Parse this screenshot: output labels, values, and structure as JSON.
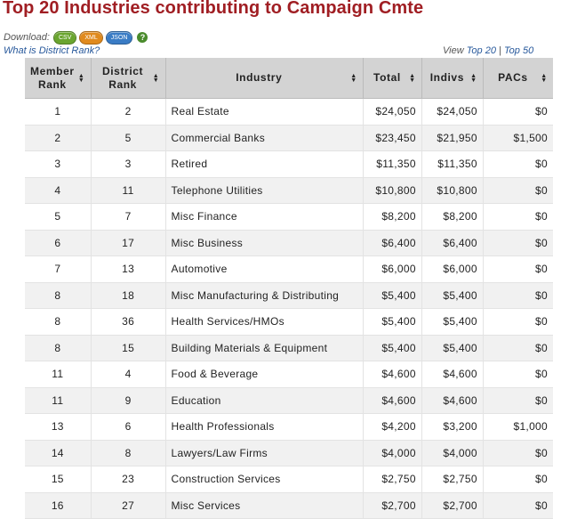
{
  "title": "Top 20 Industries contributing to Campaign Cmte",
  "download": {
    "label": "Download:",
    "buttons": [
      {
        "label": "CSV",
        "color": "#6aa52f"
      },
      {
        "label": "XML",
        "color": "#e08a1e"
      },
      {
        "label": "JSON",
        "color": "#3a7cc5"
      }
    ],
    "help": "?"
  },
  "rank_link": "What is District Rank?",
  "view": {
    "prefix": "View",
    "top20": "Top 20",
    "separator": "|",
    "top50": "Top 50"
  },
  "table": {
    "headers": {
      "member_rank": [
        "Member",
        "Rank"
      ],
      "district_rank": [
        "District",
        "Rank"
      ],
      "industry": "Industry",
      "total": "Total",
      "indivs": "Indivs",
      "pacs": "PACs"
    },
    "rows": [
      {
        "member_rank": "1",
        "district_rank": "2",
        "industry": "Real Estate",
        "total": "$24,050",
        "indivs": "$24,050",
        "pacs": "$0"
      },
      {
        "member_rank": "2",
        "district_rank": "5",
        "industry": "Commercial Banks",
        "total": "$23,450",
        "indivs": "$21,950",
        "pacs": "$1,500"
      },
      {
        "member_rank": "3",
        "district_rank": "3",
        "industry": "Retired",
        "total": "$11,350",
        "indivs": "$11,350",
        "pacs": "$0"
      },
      {
        "member_rank": "4",
        "district_rank": "11",
        "industry": "Telephone Utilities",
        "total": "$10,800",
        "indivs": "$10,800",
        "pacs": "$0"
      },
      {
        "member_rank": "5",
        "district_rank": "7",
        "industry": "Misc Finance",
        "total": "$8,200",
        "indivs": "$8,200",
        "pacs": "$0"
      },
      {
        "member_rank": "6",
        "district_rank": "17",
        "industry": "Misc Business",
        "total": "$6,400",
        "indivs": "$6,400",
        "pacs": "$0"
      },
      {
        "member_rank": "7",
        "district_rank": "13",
        "industry": "Automotive",
        "total": "$6,000",
        "indivs": "$6,000",
        "pacs": "$0"
      },
      {
        "member_rank": "8",
        "district_rank": "18",
        "industry": "Misc Manufacturing & Distributing",
        "total": "$5,400",
        "indivs": "$5,400",
        "pacs": "$0"
      },
      {
        "member_rank": "8",
        "district_rank": "36",
        "industry": "Health Services/HMOs",
        "total": "$5,400",
        "indivs": "$5,400",
        "pacs": "$0"
      },
      {
        "member_rank": "8",
        "district_rank": "15",
        "industry": "Building Materials & Equipment",
        "total": "$5,400",
        "indivs": "$5,400",
        "pacs": "$0"
      },
      {
        "member_rank": "11",
        "district_rank": "4",
        "industry": "Food & Beverage",
        "total": "$4,600",
        "indivs": "$4,600",
        "pacs": "$0"
      },
      {
        "member_rank": "11",
        "district_rank": "9",
        "industry": "Education",
        "total": "$4,600",
        "indivs": "$4,600",
        "pacs": "$0"
      },
      {
        "member_rank": "13",
        "district_rank": "6",
        "industry": "Health Professionals",
        "total": "$4,200",
        "indivs": "$3,200",
        "pacs": "$1,000"
      },
      {
        "member_rank": "14",
        "district_rank": "8",
        "industry": "Lawyers/Law Firms",
        "total": "$4,000",
        "indivs": "$4,000",
        "pacs": "$0"
      },
      {
        "member_rank": "15",
        "district_rank": "23",
        "industry": "Construction Services",
        "total": "$2,750",
        "indivs": "$2,750",
        "pacs": "$0"
      },
      {
        "member_rank": "16",
        "district_rank": "27",
        "industry": "Misc Services",
        "total": "$2,700",
        "indivs": "$2,700",
        "pacs": "$0"
      }
    ]
  }
}
